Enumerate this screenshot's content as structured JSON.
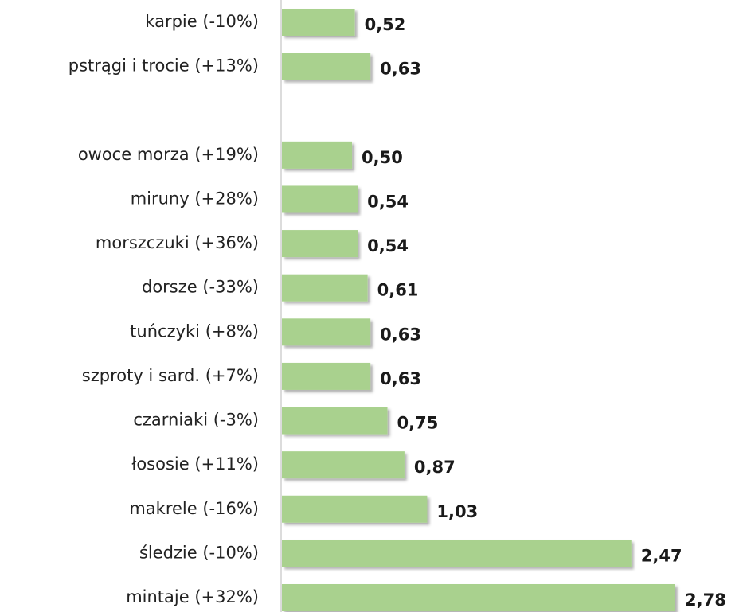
{
  "chart_data": {
    "type": "bar",
    "orientation": "horizontal",
    "categories": [
      "karpie (-10%)",
      "pstrągi i trocie (+13%)",
      null,
      "owoce morza (+19%)",
      "miruny (+28%)",
      "morszczuki (+36%)",
      "dorsze (-33%)",
      "tuńczyki (+8%)",
      "szproty i sard. (+7%)",
      "czarniaki (-3%)",
      "łososie (+11%)",
      "makrele (-16%)",
      "śledzie (-10%)",
      "mintaje (+32%)"
    ],
    "values": [
      0.52,
      0.63,
      null,
      0.5,
      0.54,
      0.54,
      0.61,
      0.63,
      0.63,
      0.75,
      0.87,
      1.03,
      2.47,
      2.78
    ],
    "value_labels": [
      "0,52",
      "0,63",
      null,
      "0,50",
      "0,54",
      "0,54",
      "0,61",
      "0,63",
      "0,63",
      "0,75",
      "0,87",
      "1,03",
      "2,47",
      "2,78"
    ],
    "color": "#a9d18e"
  }
}
